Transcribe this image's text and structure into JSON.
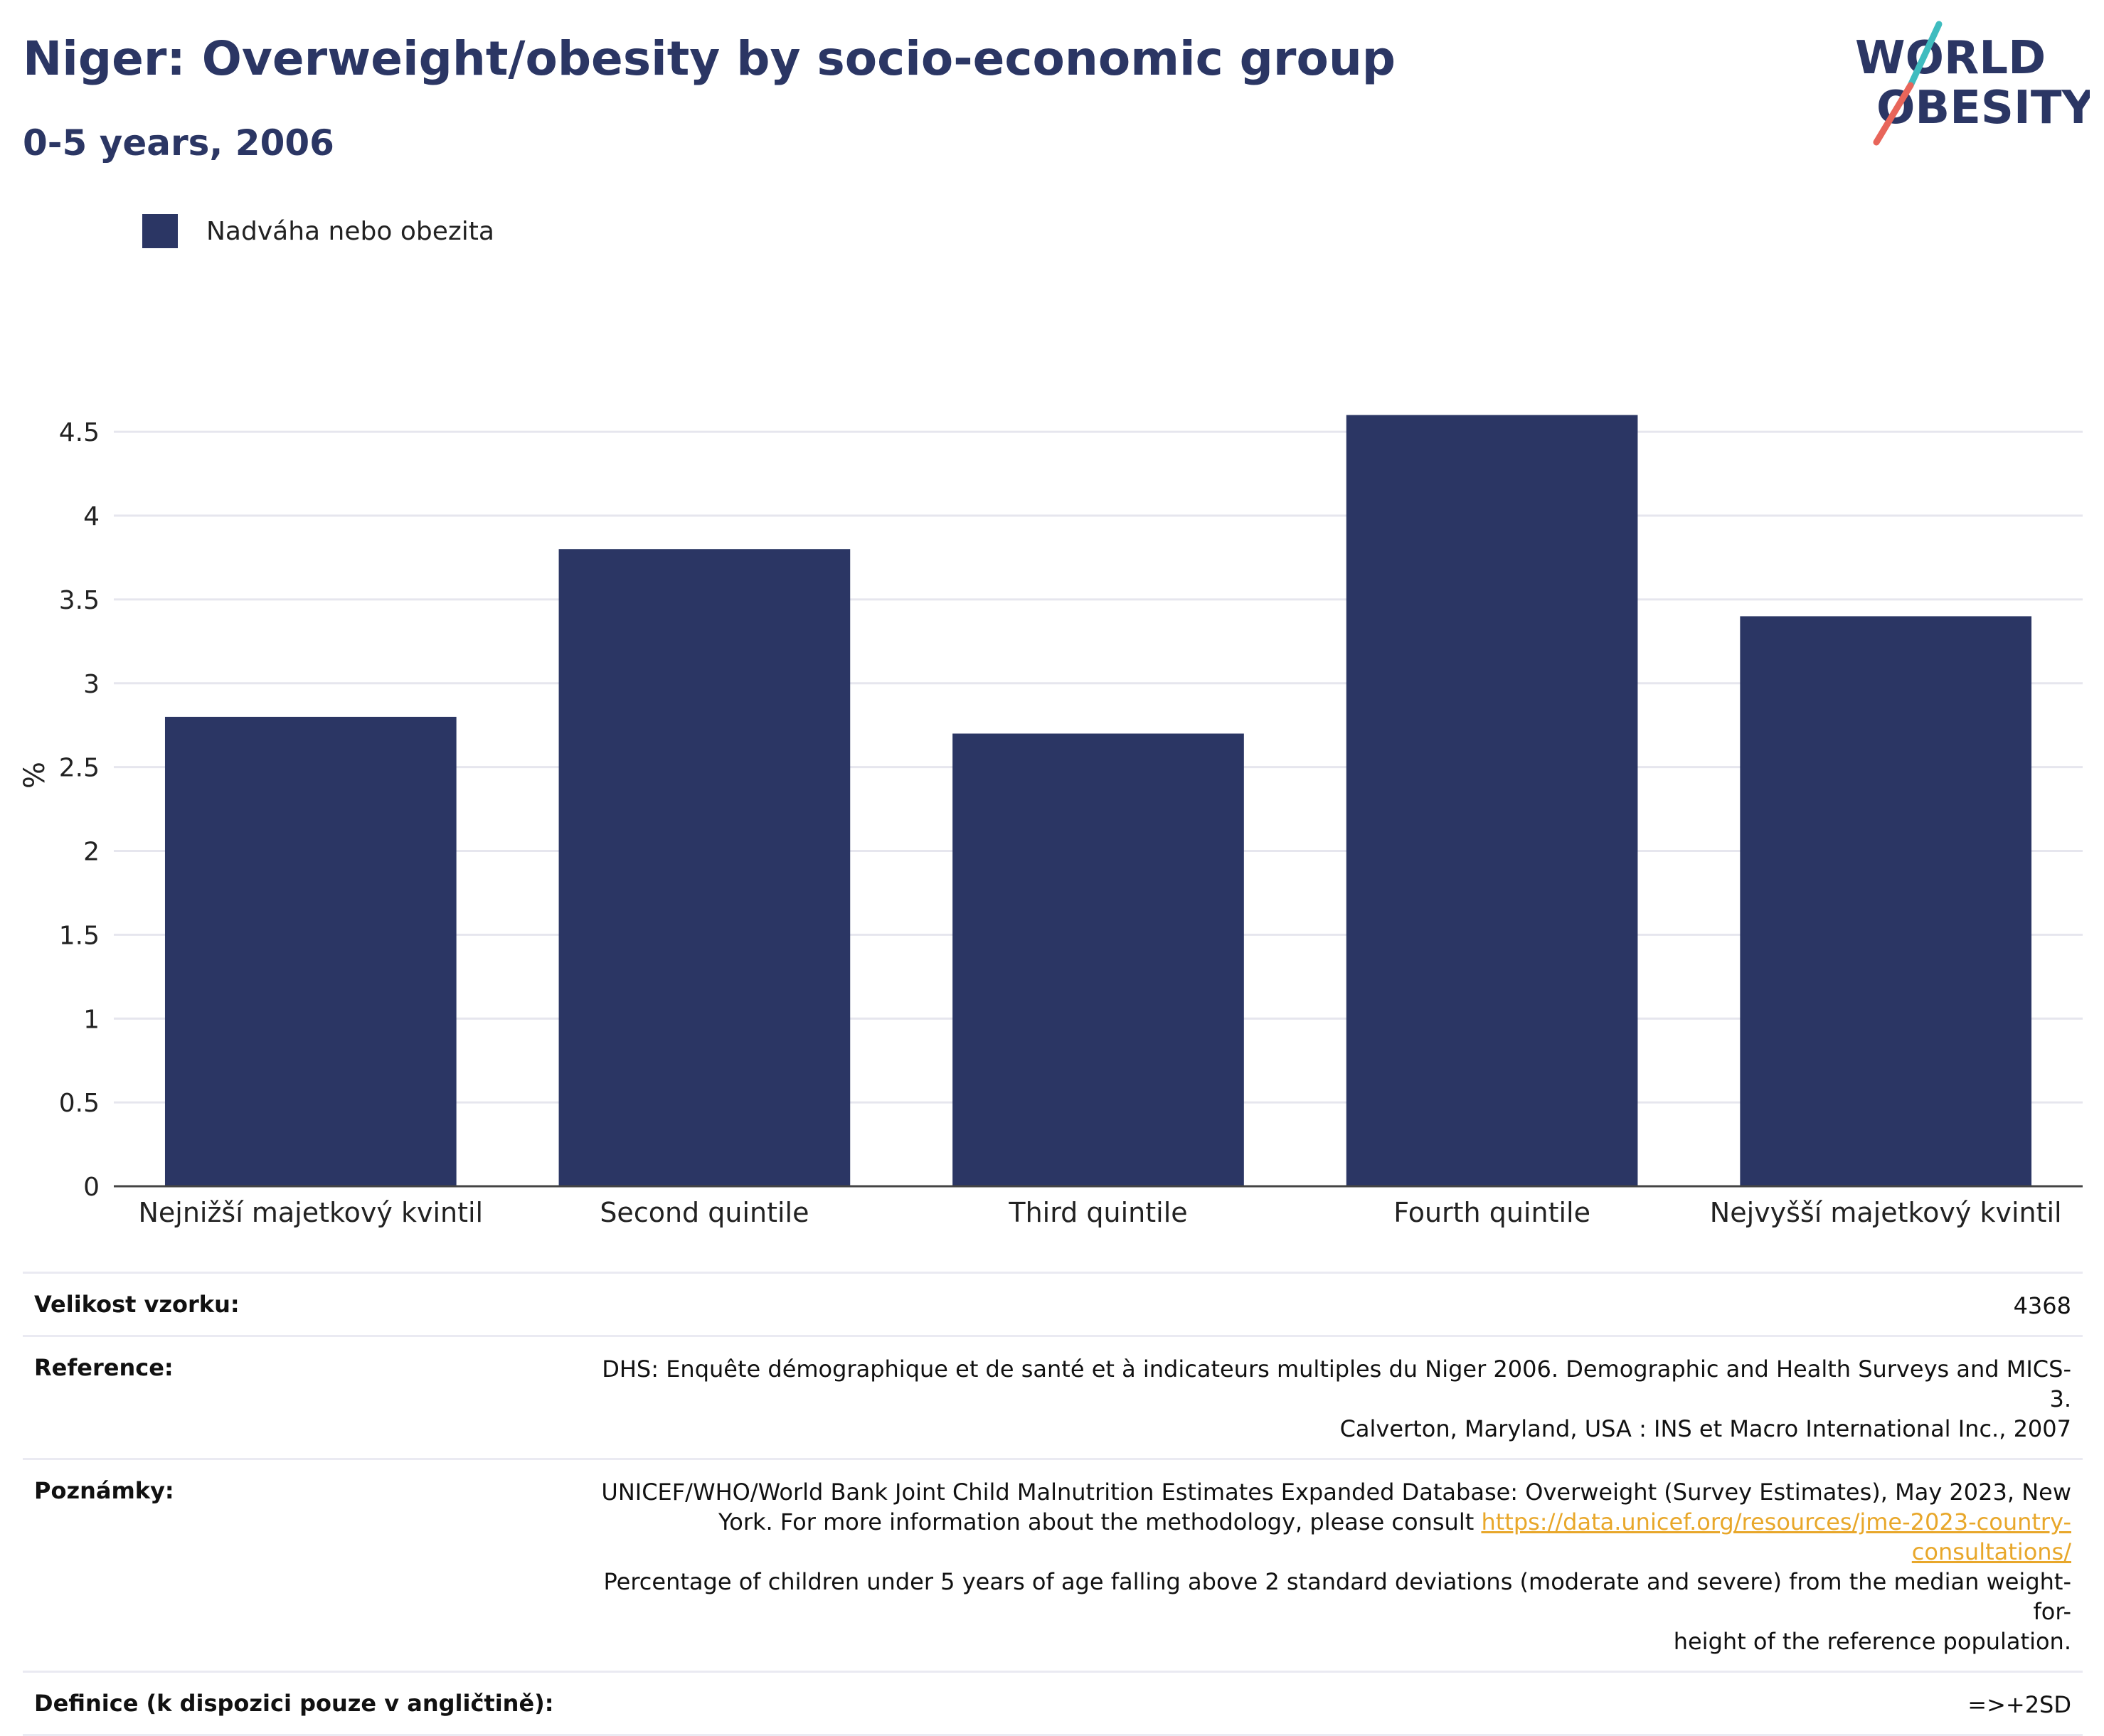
{
  "header": {
    "title": "Niger: Overweight/obesity by socio-economic group",
    "subtitle": "0-5 years, 2006"
  },
  "logo": {
    "line1": "WORLD",
    "line2": "OBESITY",
    "colors": {
      "text": "#2b3664",
      "slash_top": "#3fbcbf",
      "slash_bottom": "#e8655a"
    }
  },
  "chart_data": {
    "type": "bar",
    "categories": [
      "Nejnižší majetkový kvintil",
      "Second quintile",
      "Third quintile",
      "Fourth quintile",
      "Nejvyšší majetkový kvintil"
    ],
    "series": [
      {
        "name": "Nadváha nebo obezita",
        "values": [
          2.8,
          3.8,
          2.7,
          4.6,
          3.4
        ],
        "color": "#2b3664"
      }
    ],
    "ylabel": "%",
    "xlabel": "",
    "ylim": [
      0,
      4.7
    ],
    "yticks": [
      0,
      0.5,
      1,
      1.5,
      2,
      2.5,
      3,
      3.5,
      4,
      4.5
    ],
    "ytick_labels": [
      "0",
      "0.5",
      "1",
      "1.5",
      "2",
      "2.5",
      "3",
      "3.5",
      "4",
      "4.5"
    ],
    "grid": true,
    "legend_position": "top-left"
  },
  "info": {
    "sample_size": {
      "label": "Velikost vzorku:",
      "value": "4368"
    },
    "reference": {
      "label": "Reference:",
      "line1": "DHS: Enquête démographique et de santé et à indicateurs multiples du Niger 2006. Demographic and Health Surveys and MICS-3.",
      "line2": "Calverton, Maryland, USA : INS et Macro International Inc., 2007"
    },
    "notes": {
      "label": "Poznámky:",
      "line1": "UNICEF/WHO/World Bank Joint Child Malnutrition Estimates Expanded Database: Overweight (Survey Estimates), May 2023, New",
      "line2_prefix": "York. For more information about the methodology, please consult ",
      "link_text": "https://data.unicef.org/resources/jme-2023-country-consultations/",
      "line3": "Percentage of children under 5 years of age falling above 2 standard deviations (moderate and severe) from the median weight-for-",
      "line4": "height of the reference population."
    },
    "definition": {
      "label": "Definice (k dispozici pouze v angličtině):",
      "value": "=>+2SD"
    }
  }
}
